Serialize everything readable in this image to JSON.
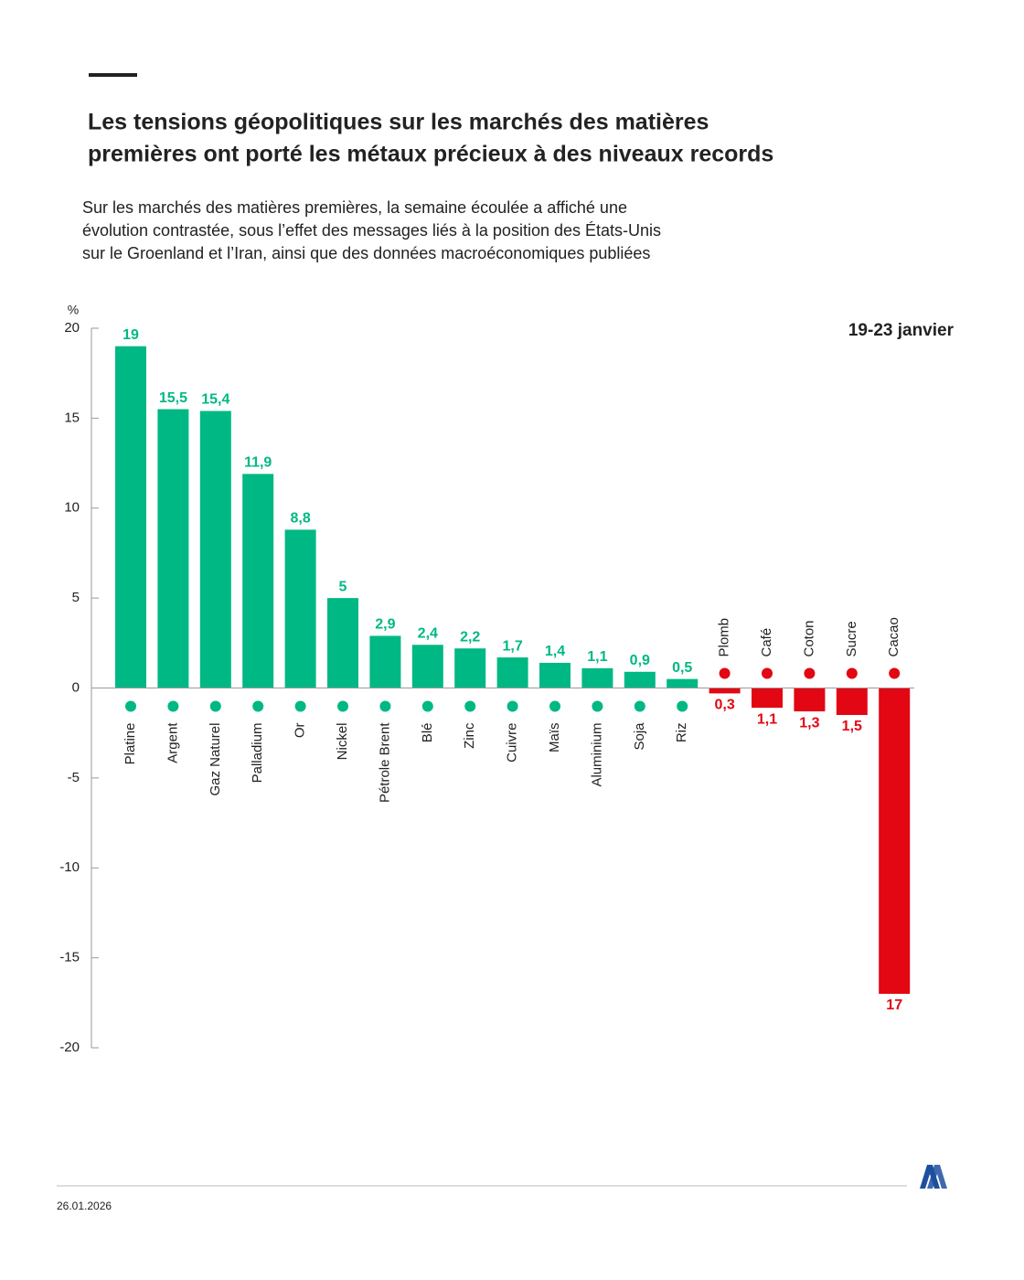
{
  "chart_data": {
    "type": "bar",
    "title": [
      "Les tensions géopolitiques sur les marchés des matières",
      "premières ont porté les métaux précieux à des niveaux records"
    ],
    "subtitle": [
      "Sur les marchés des matières premières, la semaine écoulée a affiché une",
      "évolution contrastée, sous l’effet des messages liés à la position des États-Unis",
      "sur le Groenland et l’Iran, ainsi que des données macroéconomiques publiées"
    ],
    "y_label": "%",
    "period": "19-23 janvier",
    "categories": [
      "Platine",
      "Argent",
      "Gaz Naturel",
      "Palladium",
      "Or",
      "Nickel",
      "Pétrole Brent",
      "Blé",
      "Zinc",
      "Cuivre",
      "Maïs",
      "Aluminium",
      "Soja",
      "Riz",
      "Plomb",
      "Café",
      "Coton",
      "Sucre",
      "Cacao"
    ],
    "values": [
      19,
      15.5,
      15.4,
      11.9,
      8.8,
      5,
      2.9,
      2.4,
      2.2,
      1.7,
      1.4,
      1.1,
      0.9,
      0.5,
      -0.3,
      -1.1,
      -1.3,
      -1.5,
      -17
    ],
    "value_labels": [
      "19",
      "15,5",
      "15,4",
      "11,9",
      "8,8",
      "5",
      "2,9",
      "2,4",
      "2,2",
      "1,7",
      "1,4",
      "1,1",
      "0,9",
      "0,5",
      "0,3",
      "1,1",
      "1,3",
      "1,5",
      "17"
    ],
    "positive_color": "#00b884",
    "negative_color": "#e30613",
    "ylim": [
      -20,
      20
    ],
    "yticks": [
      -20,
      -15,
      -10,
      -5,
      0,
      5,
      10,
      15,
      20
    ],
    "date": "26.01.2026"
  }
}
